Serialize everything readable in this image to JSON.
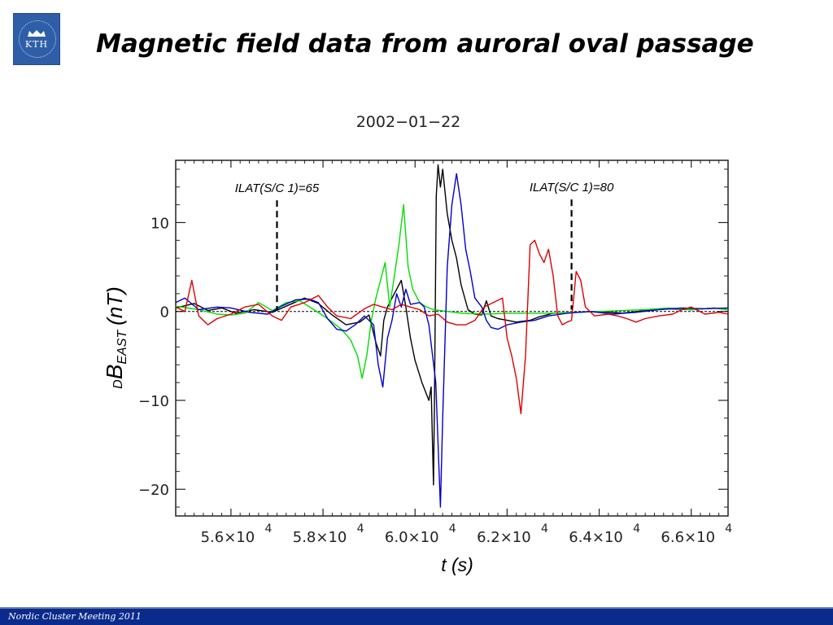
{
  "slide": {
    "title": "Magnetic field data from auroral oval passage",
    "logo_text": "KTH",
    "footer": "Nordic Cluster Meeting 2011"
  },
  "colors": {
    "footer_bg": "#0a2a8c",
    "logo_bg": "#2f5ea8"
  },
  "chart_data": {
    "type": "line",
    "title": "2002−01−22",
    "xlabel": "t (s)",
    "ylabel_main": "B",
    "ylabel_prefix": "D",
    "ylabel_sub": "EAST",
    "ylabel_unit": "(nT)",
    "xlim": [
      54800,
      66800
    ],
    "ylim": [
      -23,
      17
    ],
    "x_ticks": [
      {
        "value": 56000,
        "mantissa": "5.6×10",
        "exp": "4"
      },
      {
        "value": 58000,
        "mantissa": "5.8×10",
        "exp": "4"
      },
      {
        "value": 60000,
        "mantissa": "6.0×10",
        "exp": "4"
      },
      {
        "value": 62000,
        "mantissa": "6.2×10",
        "exp": "4"
      },
      {
        "value": 64000,
        "mantissa": "6.4×10",
        "exp": "4"
      },
      {
        "value": 66000,
        "mantissa": "6.6×10",
        "exp": "4"
      }
    ],
    "y_ticks": [
      {
        "value": 10,
        "label": "10"
      },
      {
        "value": 0,
        "label": "0"
      },
      {
        "value": -10,
        "label": "−10"
      },
      {
        "value": -20,
        "label": "−20"
      }
    ],
    "annotations": [
      {
        "text": "ILAT(S/C 1)=65",
        "x": 57000,
        "y_top": 12.5,
        "y_bottom": 0.2
      },
      {
        "text": "ILAT(S/C 1)=80",
        "x": 63400,
        "y_top": 12.6,
        "y_bottom": 0.2
      }
    ],
    "series": [
      {
        "color": "#000000",
        "points": [
          [
            54800,
            0.4
          ],
          [
            55200,
            0.9
          ],
          [
            55500,
            0.1
          ],
          [
            55800,
            0.4
          ],
          [
            56100,
            -0.2
          ],
          [
            56500,
            0.2
          ],
          [
            56900,
            -0.1
          ],
          [
            57200,
            0.6
          ],
          [
            57600,
            1.5
          ],
          [
            57900,
            0.9
          ],
          [
            58200,
            -0.4
          ],
          [
            58500,
            -1.5
          ],
          [
            58800,
            -1.2
          ],
          [
            59000,
            -0.4
          ],
          [
            59150,
            -3.5
          ],
          [
            59250,
            -5.0
          ],
          [
            59320,
            -1.0
          ],
          [
            59400,
            0.5
          ],
          [
            59500,
            1.5
          ],
          [
            59600,
            2.5
          ],
          [
            59700,
            3.5
          ],
          [
            59800,
            0.5
          ],
          [
            59900,
            -3.0
          ],
          [
            60000,
            -5.5
          ],
          [
            60150,
            -8.0
          ],
          [
            60300,
            -10.0
          ],
          [
            60350,
            -8.5
          ],
          [
            60400,
            -19.5
          ],
          [
            60420,
            -11.0
          ],
          [
            60460,
            13.0
          ],
          [
            60500,
            16.5
          ],
          [
            60550,
            14.0
          ],
          [
            60600,
            16.0
          ],
          [
            60700,
            11.0
          ],
          [
            60800,
            8.0
          ],
          [
            60900,
            6.0
          ],
          [
            61000,
            3.0
          ],
          [
            61150,
            0.2
          ],
          [
            61300,
            -0.3
          ],
          [
            61450,
            -0.4
          ],
          [
            61550,
            1.2
          ],
          [
            61650,
            -0.5
          ],
          [
            61800,
            -0.8
          ],
          [
            62000,
            -1.0
          ],
          [
            62200,
            -1.2
          ],
          [
            62500,
            -1.0
          ],
          [
            62700,
            -0.6
          ],
          [
            63000,
            -0.2
          ],
          [
            63500,
            -0.1
          ],
          [
            64000,
            0.0
          ],
          [
            64500,
            -0.2
          ],
          [
            65000,
            0.1
          ],
          [
            65500,
            0.3
          ],
          [
            66000,
            0.2
          ],
          [
            66500,
            0.4
          ],
          [
            66800,
            0.2
          ]
        ]
      },
      {
        "color": "#00dd00",
        "points": [
          [
            54800,
            0.6
          ],
          [
            55300,
            0.2
          ],
          [
            55700,
            -0.3
          ],
          [
            56000,
            -0.4
          ],
          [
            56300,
            -0.2
          ],
          [
            56600,
            1.0
          ],
          [
            56900,
            0.1
          ],
          [
            57200,
            1.0
          ],
          [
            57500,
            1.2
          ],
          [
            57800,
            0.2
          ],
          [
            58100,
            -0.8
          ],
          [
            58400,
            -2.0
          ],
          [
            58600,
            -3.2
          ],
          [
            58750,
            -5.0
          ],
          [
            58850,
            -7.5
          ],
          [
            58950,
            -5.0
          ],
          [
            59050,
            -1.0
          ],
          [
            59150,
            1.5
          ],
          [
            59250,
            3.5
          ],
          [
            59350,
            5.5
          ],
          [
            59450,
            0.5
          ],
          [
            59550,
            4.0
          ],
          [
            59650,
            7.5
          ],
          [
            59750,
            12.0
          ],
          [
            59850,
            5.0
          ],
          [
            59950,
            2.5
          ],
          [
            60100,
            1.0
          ],
          [
            60250,
            0.5
          ],
          [
            60400,
            0.2
          ],
          [
            60700,
            0.0
          ],
          [
            61000,
            -0.2
          ],
          [
            61500,
            -0.3
          ],
          [
            62000,
            -0.2
          ],
          [
            62500,
            -0.2
          ],
          [
            63000,
            -0.2
          ],
          [
            63500,
            -0.1
          ],
          [
            64000,
            0.0
          ],
          [
            64500,
            0.1
          ],
          [
            65000,
            0.2
          ],
          [
            65500,
            0.4
          ],
          [
            66000,
            0.2
          ],
          [
            66500,
            0.4
          ],
          [
            66800,
            0.2
          ]
        ]
      },
      {
        "color": "#0000cc",
        "points": [
          [
            54800,
            1.0
          ],
          [
            55000,
            1.5
          ],
          [
            55300,
            0.2
          ],
          [
            55700,
            0.5
          ],
          [
            56000,
            0.4
          ],
          [
            56400,
            -0.1
          ],
          [
            56800,
            -0.3
          ],
          [
            57100,
            0.6
          ],
          [
            57400,
            1.3
          ],
          [
            57700,
            1.4
          ],
          [
            57900,
            1.0
          ],
          [
            58100,
            -0.8
          ],
          [
            58300,
            -2.0
          ],
          [
            58500,
            -2.2
          ],
          [
            58700,
            -1.5
          ],
          [
            58900,
            -0.5
          ],
          [
            59100,
            -1.5
          ],
          [
            59200,
            -6.0
          ],
          [
            59300,
            -8.5
          ],
          [
            59400,
            -3.0
          ],
          [
            59500,
            -1.0
          ],
          [
            59600,
            2.0
          ],
          [
            59700,
            0.5
          ],
          [
            59800,
            2.5
          ],
          [
            59900,
            0.8
          ],
          [
            60100,
            1.0
          ],
          [
            60200,
            0.5
          ],
          [
            60300,
            -1.5
          ],
          [
            60450,
            -8.0
          ],
          [
            60550,
            -22.0
          ],
          [
            60600,
            -12.0
          ],
          [
            60700,
            5.0
          ],
          [
            60800,
            12.0
          ],
          [
            60900,
            15.5
          ],
          [
            61000,
            12.0
          ],
          [
            61100,
            7.0
          ],
          [
            61200,
            4.5
          ],
          [
            61300,
            1.5
          ],
          [
            61450,
            0.5
          ],
          [
            61550,
            -1.0
          ],
          [
            61650,
            -1.8
          ],
          [
            61800,
            -2.0
          ],
          [
            62000,
            -1.5
          ],
          [
            62300,
            -1.2
          ],
          [
            62600,
            -1.0
          ],
          [
            62900,
            -0.5
          ],
          [
            63300,
            -0.2
          ],
          [
            63800,
            0.0
          ],
          [
            64300,
            -0.3
          ],
          [
            64800,
            -0.1
          ],
          [
            65300,
            0.2
          ],
          [
            65800,
            0.4
          ],
          [
            66300,
            0.3
          ],
          [
            66800,
            0.4
          ]
        ]
      },
      {
        "color": "#dd0000",
        "points": [
          [
            54800,
            0.5
          ],
          [
            55000,
            0.0
          ],
          [
            55150,
            3.5
          ],
          [
            55300,
            -0.5
          ],
          [
            55500,
            -1.5
          ],
          [
            55700,
            -0.8
          ],
          [
            56000,
            -0.3
          ],
          [
            56300,
            0.5
          ],
          [
            56600,
            0.8
          ],
          [
            56900,
            -0.5
          ],
          [
            57100,
            -1.0
          ],
          [
            57300,
            0.5
          ],
          [
            57600,
            1.0
          ],
          [
            57900,
            1.8
          ],
          [
            58100,
            0.5
          ],
          [
            58300,
            -0.5
          ],
          [
            58600,
            -0.8
          ],
          [
            58900,
            0.3
          ],
          [
            59100,
            0.8
          ],
          [
            59300,
            0.5
          ],
          [
            59500,
            0.2
          ],
          [
            59700,
            0.8
          ],
          [
            59900,
            0.5
          ],
          [
            60100,
            0.2
          ],
          [
            60300,
            -0.5
          ],
          [
            60500,
            -0.3
          ],
          [
            60700,
            -1.2
          ],
          [
            60900,
            -1.5
          ],
          [
            61100,
            -1.5
          ],
          [
            61300,
            -1.0
          ],
          [
            61500,
            0.5
          ],
          [
            61700,
            1.0
          ],
          [
            61900,
            1.5
          ],
          [
            62000,
            -3.0
          ],
          [
            62100,
            -5.0
          ],
          [
            62200,
            -7.5
          ],
          [
            62300,
            -11.5
          ],
          [
            62400,
            -5.0
          ],
          [
            62500,
            7.5
          ],
          [
            62600,
            8.0
          ],
          [
            62700,
            6.5
          ],
          [
            62800,
            5.5
          ],
          [
            62900,
            7.0
          ],
          [
            63000,
            4.0
          ],
          [
            63100,
            -0.5
          ],
          [
            63200,
            -1.5
          ],
          [
            63300,
            -1.2
          ],
          [
            63400,
            -1.0
          ],
          [
            63500,
            4.5
          ],
          [
            63600,
            3.5
          ],
          [
            63700,
            0.5
          ],
          [
            63900,
            -0.5
          ],
          [
            64200,
            -0.3
          ],
          [
            64400,
            -0.5
          ],
          [
            64600,
            -0.8
          ],
          [
            64800,
            -1.2
          ],
          [
            65000,
            -0.8
          ],
          [
            65300,
            -0.5
          ],
          [
            65600,
            -0.3
          ],
          [
            65800,
            0.2
          ],
          [
            66000,
            0.5
          ],
          [
            66300,
            -0.3
          ],
          [
            66600,
            -0.1
          ],
          [
            66800,
            -0.3
          ]
        ]
      }
    ]
  }
}
